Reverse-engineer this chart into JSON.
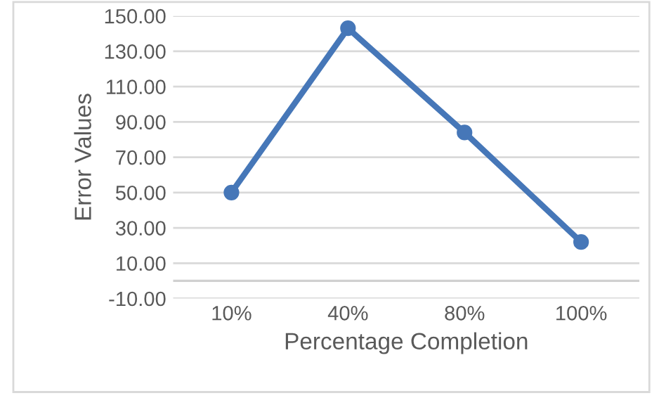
{
  "chart_data": {
    "type": "line",
    "xlabel": "Percentage Completion",
    "ylabel": "Error Values",
    "categories": [
      "10%",
      "40%",
      "80%",
      "100%"
    ],
    "series": [
      {
        "color": "#4677b8",
        "values": [
          50,
          143,
          84,
          22
        ]
      }
    ],
    "ylim": [
      -10,
      150
    ],
    "yticks": [
      {
        "value": -10,
        "label": "-10.00"
      },
      {
        "value": 10,
        "label": "10.00"
      },
      {
        "value": 30,
        "label": "30.00"
      },
      {
        "value": 50,
        "label": "50.00"
      },
      {
        "value": 70,
        "label": "70.00"
      },
      {
        "value": 90,
        "label": "90.00"
      },
      {
        "value": 110,
        "label": "110.00"
      },
      {
        "value": 130,
        "label": "130.00"
      },
      {
        "value": 150,
        "label": "150.00"
      }
    ],
    "ref_lines": [
      {
        "axis": "y",
        "value": 0,
        "color": "#d0d0d0"
      }
    ],
    "grid": "y",
    "marker": "circle",
    "line_style": "solid",
    "legend": false
  }
}
